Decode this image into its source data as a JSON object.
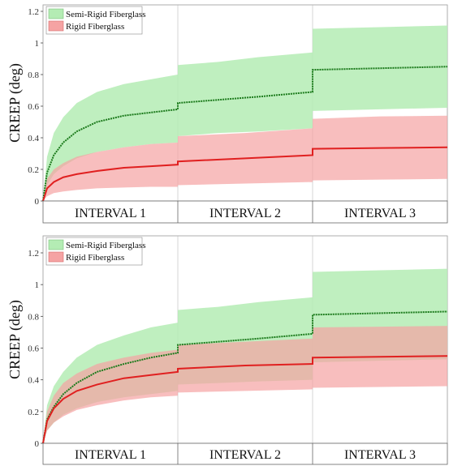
{
  "colors": {
    "green_fill": "#b4ecb4",
    "green_line": "#1b7a1b",
    "red_fill": "#f5a3a3",
    "red_line": "#e02020",
    "overlap_fill": "#d9b29a"
  },
  "chart_data": [
    {
      "type": "area",
      "ylabel": "CREEP (deg)",
      "ylim": [
        0,
        1.2
      ],
      "yticks": [
        "0",
        "0.2",
        "0.4",
        "0.6",
        "0.8",
        "1",
        "1.2"
      ],
      "intervals": [
        "INTERVAL 1",
        "INTERVAL 2",
        "INTERVAL 3"
      ],
      "legend_position": "top-left",
      "series": [
        {
          "name": "Semi-Rigid Fiberglass",
          "color": "#1b7a1b",
          "band_color": "#b4ecb4",
          "mean": [
            [
              0,
              0
            ],
            [
              0.03,
              0.18
            ],
            [
              0.08,
              0.29
            ],
            [
              0.15,
              0.37
            ],
            [
              0.25,
              0.44
            ],
            [
              0.4,
              0.5
            ],
            [
              0.6,
              0.54
            ],
            [
              0.8,
              0.56
            ],
            [
              1.0,
              0.58
            ],
            [
              1.0,
              0.62
            ],
            [
              1.3,
              0.64
            ],
            [
              1.6,
              0.66
            ],
            [
              2.0,
              0.69
            ],
            [
              2.0,
              0.83
            ],
            [
              2.5,
              0.84
            ],
            [
              3.0,
              0.85
            ]
          ],
          "upper": [
            [
              0,
              0
            ],
            [
              0.03,
              0.28
            ],
            [
              0.08,
              0.43
            ],
            [
              0.15,
              0.53
            ],
            [
              0.25,
              0.62
            ],
            [
              0.4,
              0.69
            ],
            [
              0.6,
              0.74
            ],
            [
              0.8,
              0.77
            ],
            [
              1.0,
              0.8
            ],
            [
              1.0,
              0.86
            ],
            [
              1.3,
              0.88
            ],
            [
              1.6,
              0.91
            ],
            [
              2.0,
              0.94
            ],
            [
              2.0,
              1.09
            ],
            [
              2.5,
              1.1
            ],
            [
              3.0,
              1.11
            ]
          ],
          "lower": [
            [
              0,
              0
            ],
            [
              0.03,
              0.1
            ],
            [
              0.08,
              0.17
            ],
            [
              0.15,
              0.22
            ],
            [
              0.25,
              0.27
            ],
            [
              0.4,
              0.31
            ],
            [
              0.6,
              0.34
            ],
            [
              0.8,
              0.36
            ],
            [
              1.0,
              0.37
            ],
            [
              1.0,
              0.41
            ],
            [
              1.3,
              0.43
            ],
            [
              1.6,
              0.44
            ],
            [
              2.0,
              0.46
            ],
            [
              2.0,
              0.57
            ],
            [
              2.5,
              0.58
            ],
            [
              3.0,
              0.59
            ]
          ]
        },
        {
          "name": "Rigid Fiberglass",
          "color": "#e02020",
          "band_color": "#f5a3a3",
          "mean": [
            [
              0,
              0
            ],
            [
              0.03,
              0.08
            ],
            [
              0.08,
              0.12
            ],
            [
              0.15,
              0.15
            ],
            [
              0.25,
              0.17
            ],
            [
              0.4,
              0.19
            ],
            [
              0.6,
              0.21
            ],
            [
              0.8,
              0.22
            ],
            [
              1.0,
              0.23
            ],
            [
              1.0,
              0.25
            ],
            [
              1.5,
              0.27
            ],
            [
              2.0,
              0.29
            ],
            [
              2.0,
              0.33
            ],
            [
              2.5,
              0.335
            ],
            [
              3.0,
              0.34
            ]
          ],
          "upper": [
            [
              0,
              0
            ],
            [
              0.03,
              0.14
            ],
            [
              0.08,
              0.2
            ],
            [
              0.15,
              0.24
            ],
            [
              0.25,
              0.28
            ],
            [
              0.4,
              0.31
            ],
            [
              0.6,
              0.34
            ],
            [
              0.8,
              0.36
            ],
            [
              1.0,
              0.37
            ],
            [
              1.0,
              0.41
            ],
            [
              1.5,
              0.43
            ],
            [
              2.0,
              0.46
            ],
            [
              2.0,
              0.52
            ],
            [
              2.5,
              0.535
            ],
            [
              3.0,
              0.54
            ]
          ],
          "lower": [
            [
              0,
              0
            ],
            [
              0.03,
              0.03
            ],
            [
              0.08,
              0.05
            ],
            [
              0.15,
              0.06
            ],
            [
              0.25,
              0.07
            ],
            [
              0.4,
              0.08
            ],
            [
              0.6,
              0.085
            ],
            [
              0.8,
              0.09
            ],
            [
              1.0,
              0.09
            ],
            [
              1.0,
              0.1
            ],
            [
              1.5,
              0.11
            ],
            [
              2.0,
              0.12
            ],
            [
              2.0,
              0.13
            ],
            [
              2.5,
              0.135
            ],
            [
              3.0,
              0.14
            ]
          ]
        }
      ]
    },
    {
      "type": "area",
      "ylabel": "CREEP (deg)",
      "ylim": [
        0,
        1.2
      ],
      "yticks": [
        "0",
        "0.2",
        "0.4",
        "0.6",
        "0.8",
        "1",
        "1.2"
      ],
      "intervals": [
        "INTERVAL 1",
        "INTERVAL 2",
        "INTERVAL 3"
      ],
      "legend_position": "top-left",
      "series": [
        {
          "name": "Semi-Rigid Fiberglass",
          "color": "#1b7a1b",
          "band_color": "#b4ecb4",
          "mean": [
            [
              0,
              0
            ],
            [
              0.03,
              0.15
            ],
            [
              0.08,
              0.23
            ],
            [
              0.15,
              0.31
            ],
            [
              0.25,
              0.38
            ],
            [
              0.4,
              0.45
            ],
            [
              0.6,
              0.5
            ],
            [
              0.8,
              0.54
            ],
            [
              1.0,
              0.57
            ],
            [
              1.0,
              0.62
            ],
            [
              1.3,
              0.64
            ],
            [
              1.6,
              0.66
            ],
            [
              2.0,
              0.69
            ],
            [
              2.0,
              0.81
            ],
            [
              2.5,
              0.82
            ],
            [
              3.0,
              0.83
            ]
          ],
          "upper": [
            [
              0,
              0
            ],
            [
              0.03,
              0.24
            ],
            [
              0.08,
              0.36
            ],
            [
              0.15,
              0.45
            ],
            [
              0.25,
              0.54
            ],
            [
              0.4,
              0.62
            ],
            [
              0.6,
              0.68
            ],
            [
              0.8,
              0.73
            ],
            [
              1.0,
              0.76
            ],
            [
              1.0,
              0.84
            ],
            [
              1.3,
              0.86
            ],
            [
              1.6,
              0.89
            ],
            [
              2.0,
              0.92
            ],
            [
              2.0,
              1.08
            ],
            [
              2.5,
              1.09
            ],
            [
              3.0,
              1.1
            ]
          ],
          "lower": [
            [
              0,
              0
            ],
            [
              0.03,
              0.08
            ],
            [
              0.08,
              0.13
            ],
            [
              0.15,
              0.18
            ],
            [
              0.25,
              0.22
            ],
            [
              0.4,
              0.26
            ],
            [
              0.6,
              0.29
            ],
            [
              0.8,
              0.31
            ],
            [
              1.0,
              0.33
            ],
            [
              1.0,
              0.37
            ],
            [
              1.3,
              0.38
            ],
            [
              1.6,
              0.39
            ],
            [
              2.0,
              0.4
            ],
            [
              2.0,
              0.51
            ],
            [
              2.5,
              0.52
            ],
            [
              3.0,
              0.53
            ]
          ]
        },
        {
          "name": "Rigid Fiberglass",
          "color": "#e02020",
          "band_color": "#f5a3a3",
          "mean": [
            [
              0,
              0
            ],
            [
              0.03,
              0.14
            ],
            [
              0.08,
              0.22
            ],
            [
              0.15,
              0.28
            ],
            [
              0.25,
              0.33
            ],
            [
              0.4,
              0.37
            ],
            [
              0.6,
              0.41
            ],
            [
              0.8,
              0.43
            ],
            [
              1.0,
              0.45
            ],
            [
              1.0,
              0.47
            ],
            [
              1.5,
              0.49
            ],
            [
              2.0,
              0.5
            ],
            [
              2.0,
              0.54
            ],
            [
              2.5,
              0.545
            ],
            [
              3.0,
              0.55
            ]
          ],
          "upper": [
            [
              0,
              0
            ],
            [
              0.03,
              0.2
            ],
            [
              0.08,
              0.3
            ],
            [
              0.15,
              0.38
            ],
            [
              0.25,
              0.44
            ],
            [
              0.4,
              0.5
            ],
            [
              0.6,
              0.54
            ],
            [
              0.8,
              0.57
            ],
            [
              1.0,
              0.59
            ],
            [
              1.0,
              0.62
            ],
            [
              1.5,
              0.64
            ],
            [
              2.0,
              0.66
            ],
            [
              2.0,
              0.73
            ],
            [
              2.5,
              0.735
            ],
            [
              3.0,
              0.74
            ]
          ],
          "lower": [
            [
              0,
              0
            ],
            [
              0.03,
              0.08
            ],
            [
              0.08,
              0.13
            ],
            [
              0.15,
              0.17
            ],
            [
              0.25,
              0.21
            ],
            [
              0.4,
              0.24
            ],
            [
              0.6,
              0.27
            ],
            [
              0.8,
              0.29
            ],
            [
              1.0,
              0.3
            ],
            [
              1.0,
              0.32
            ],
            [
              1.5,
              0.33
            ],
            [
              2.0,
              0.34
            ],
            [
              2.0,
              0.35
            ],
            [
              2.5,
              0.355
            ],
            [
              3.0,
              0.36
            ]
          ]
        }
      ]
    }
  ]
}
